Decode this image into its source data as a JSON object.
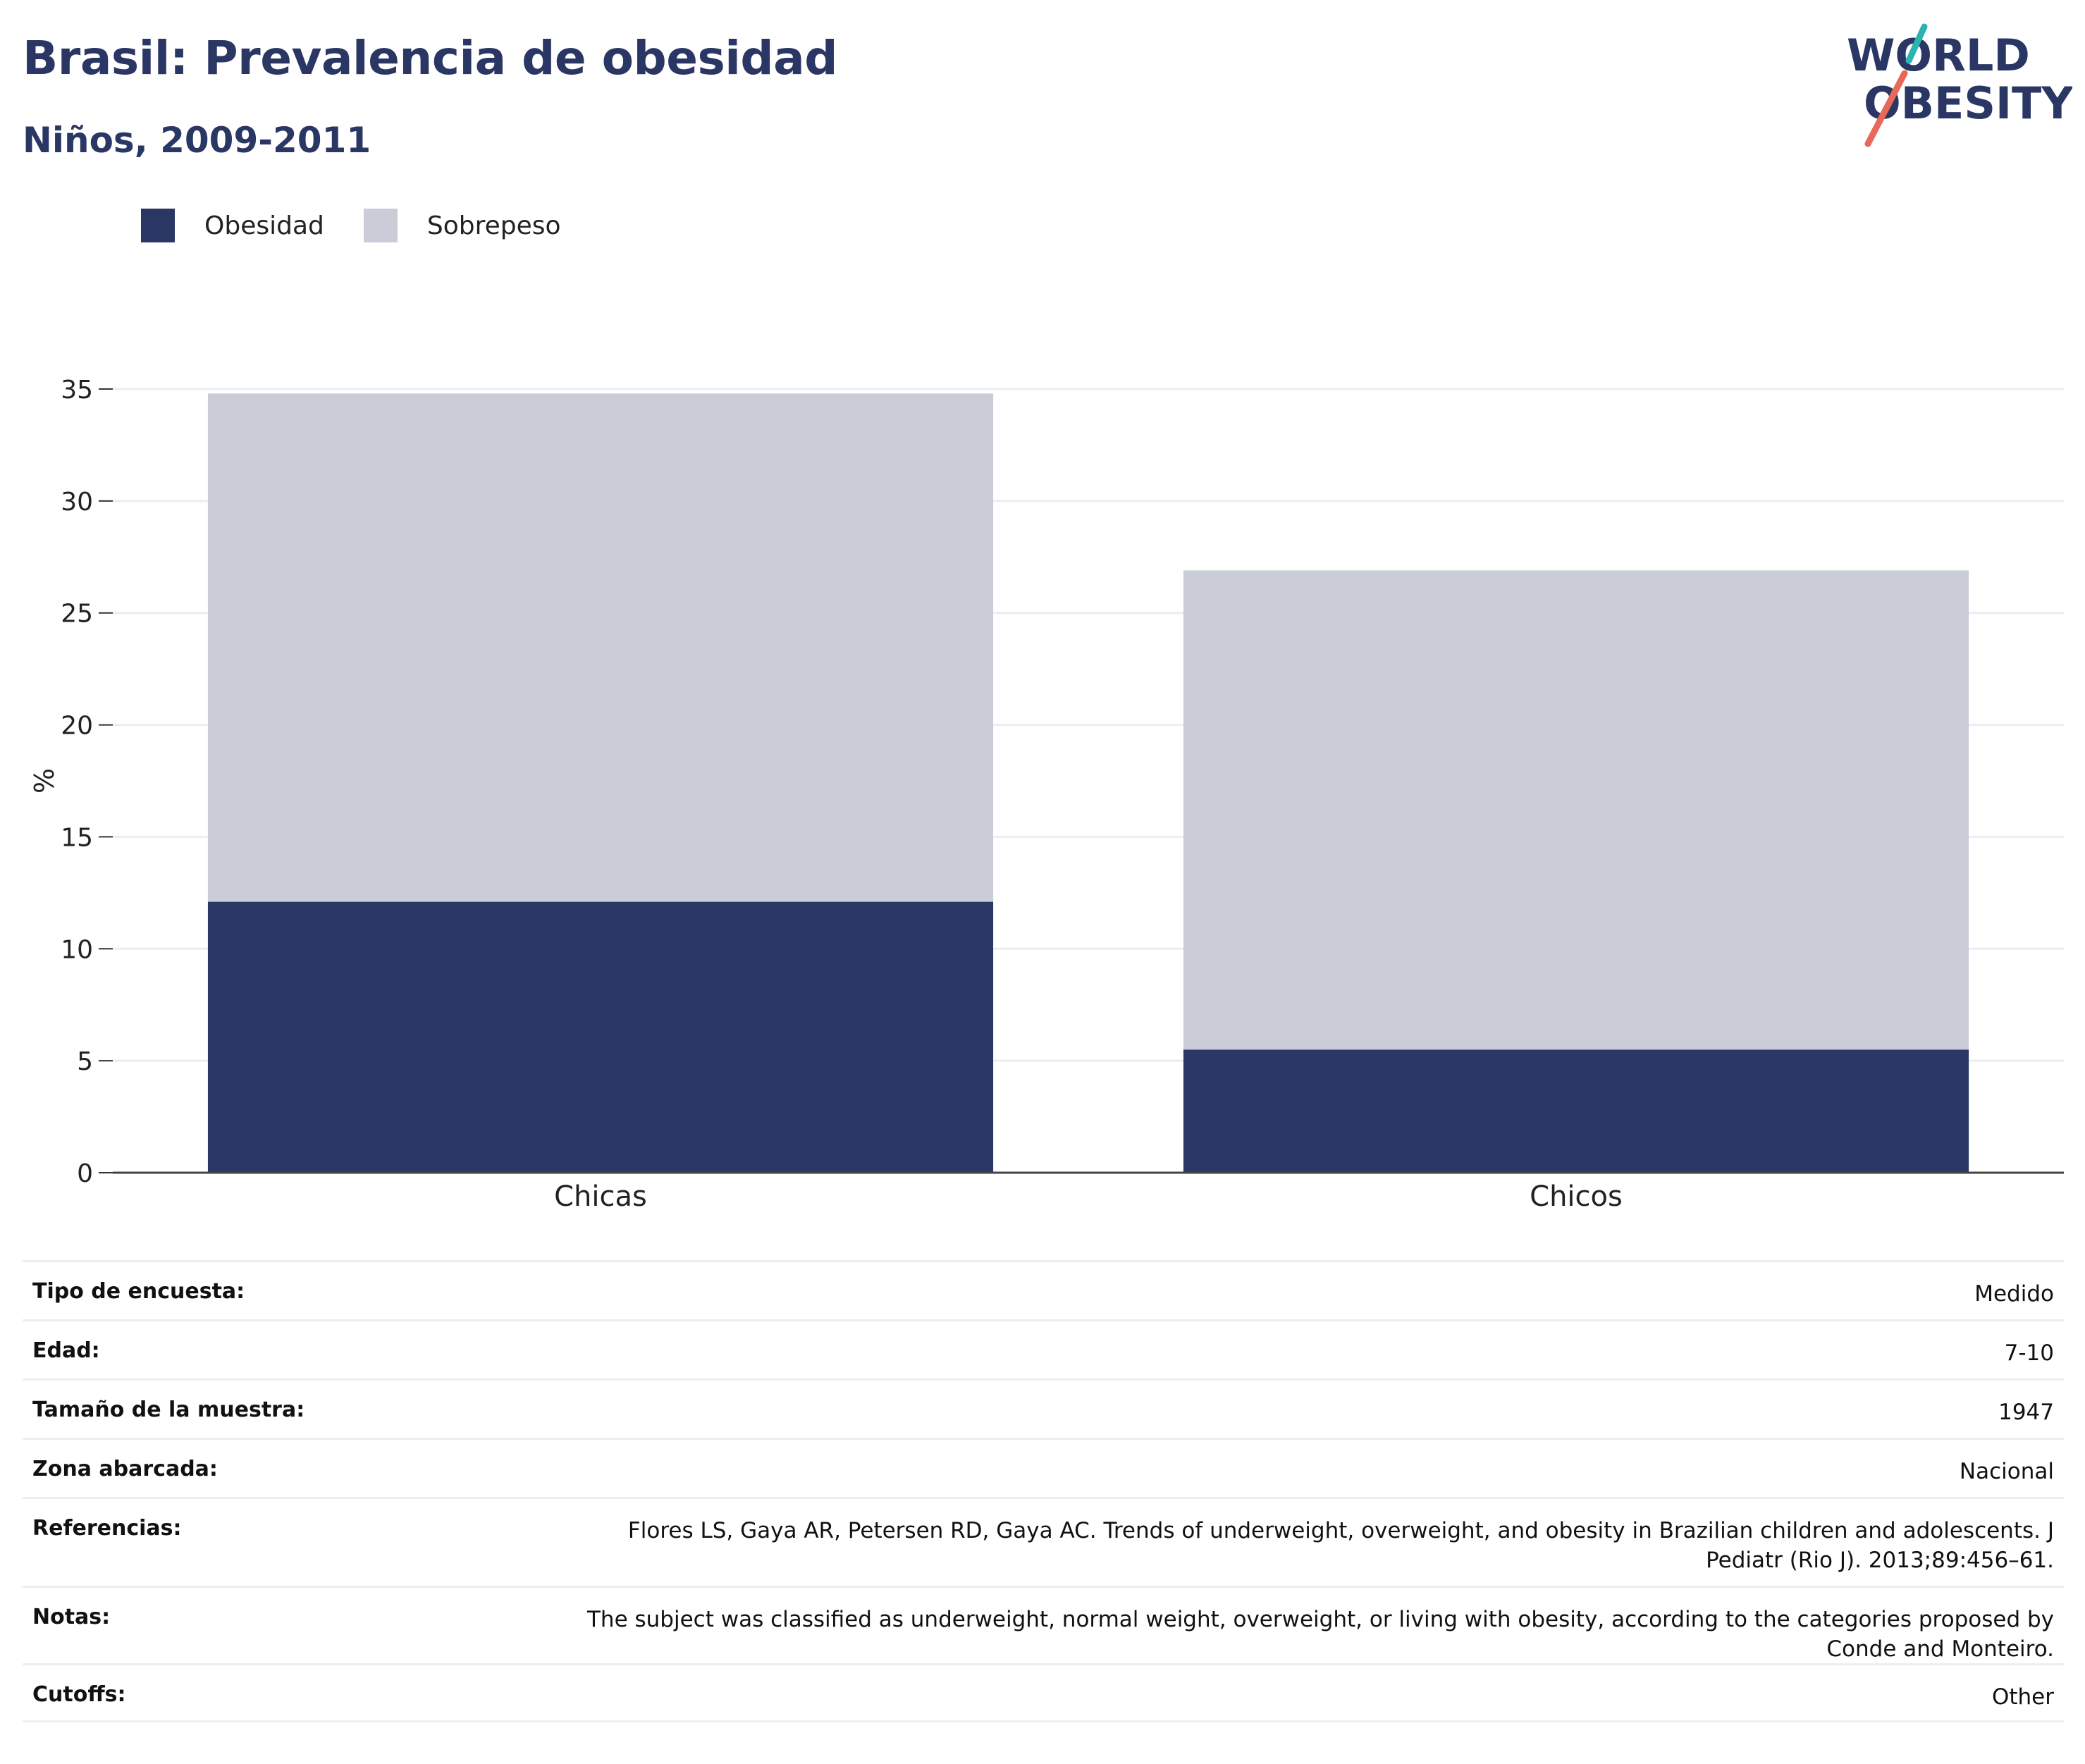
{
  "header": {
    "title": "Brasil: Prevalencia de obesidad",
    "subtitle": "Niños, 2009-2011"
  },
  "logo": {
    "line1": "WORLD",
    "line2": "OBESITY",
    "colors": {
      "text": "#2a3664",
      "teal": "#2bb3b1",
      "coral": "#e8685a"
    }
  },
  "legend": {
    "items": [
      {
        "label": "Obesidad",
        "color": "#2a3664"
      },
      {
        "label": "Sobrepeso",
        "color": "#cacdd8"
      }
    ]
  },
  "chart_data": {
    "type": "bar",
    "stacked": true,
    "categories": [
      "Chicas",
      "Chicos"
    ],
    "series": [
      {
        "name": "Obesidad",
        "values": [
          12.1,
          5.5
        ],
        "color": "#2a3664"
      },
      {
        "name": "Sobrepeso",
        "values": [
          22.7,
          21.4
        ],
        "color": "#cacdd8"
      }
    ],
    "title": "Brasil: Prevalencia de obesidad",
    "subtitle": "Niños, 2009-2011",
    "xlabel": "",
    "ylabel": "%",
    "ylim": [
      0,
      35
    ],
    "yticks": [
      0,
      5,
      10,
      15,
      20,
      25,
      30,
      35
    ],
    "grid": true,
    "legend_position": "top-left"
  },
  "details": [
    {
      "label": "Tipo de encuesta:",
      "value": "Medido"
    },
    {
      "label": "Edad:",
      "value": "7-10"
    },
    {
      "label": "Tamaño de la muestra:",
      "value": "1947"
    },
    {
      "label": "Zona abarcada:",
      "value": "Nacional"
    },
    {
      "label": "Referencias:",
      "value": "Flores LS, Gaya AR, Petersen RD, Gaya AC. Trends of underweight, overweight, and obesity in Brazilian children and adolescents. J Pediatr (Rio J). 2013;89:456–61."
    },
    {
      "label": "Notas:",
      "value": "The subject was classified as underweight, normal weight, overweight, or living with obesity, according to the categories proposed by Conde and Monteiro."
    },
    {
      "label": "Cutoffs:",
      "value": "Other"
    }
  ]
}
